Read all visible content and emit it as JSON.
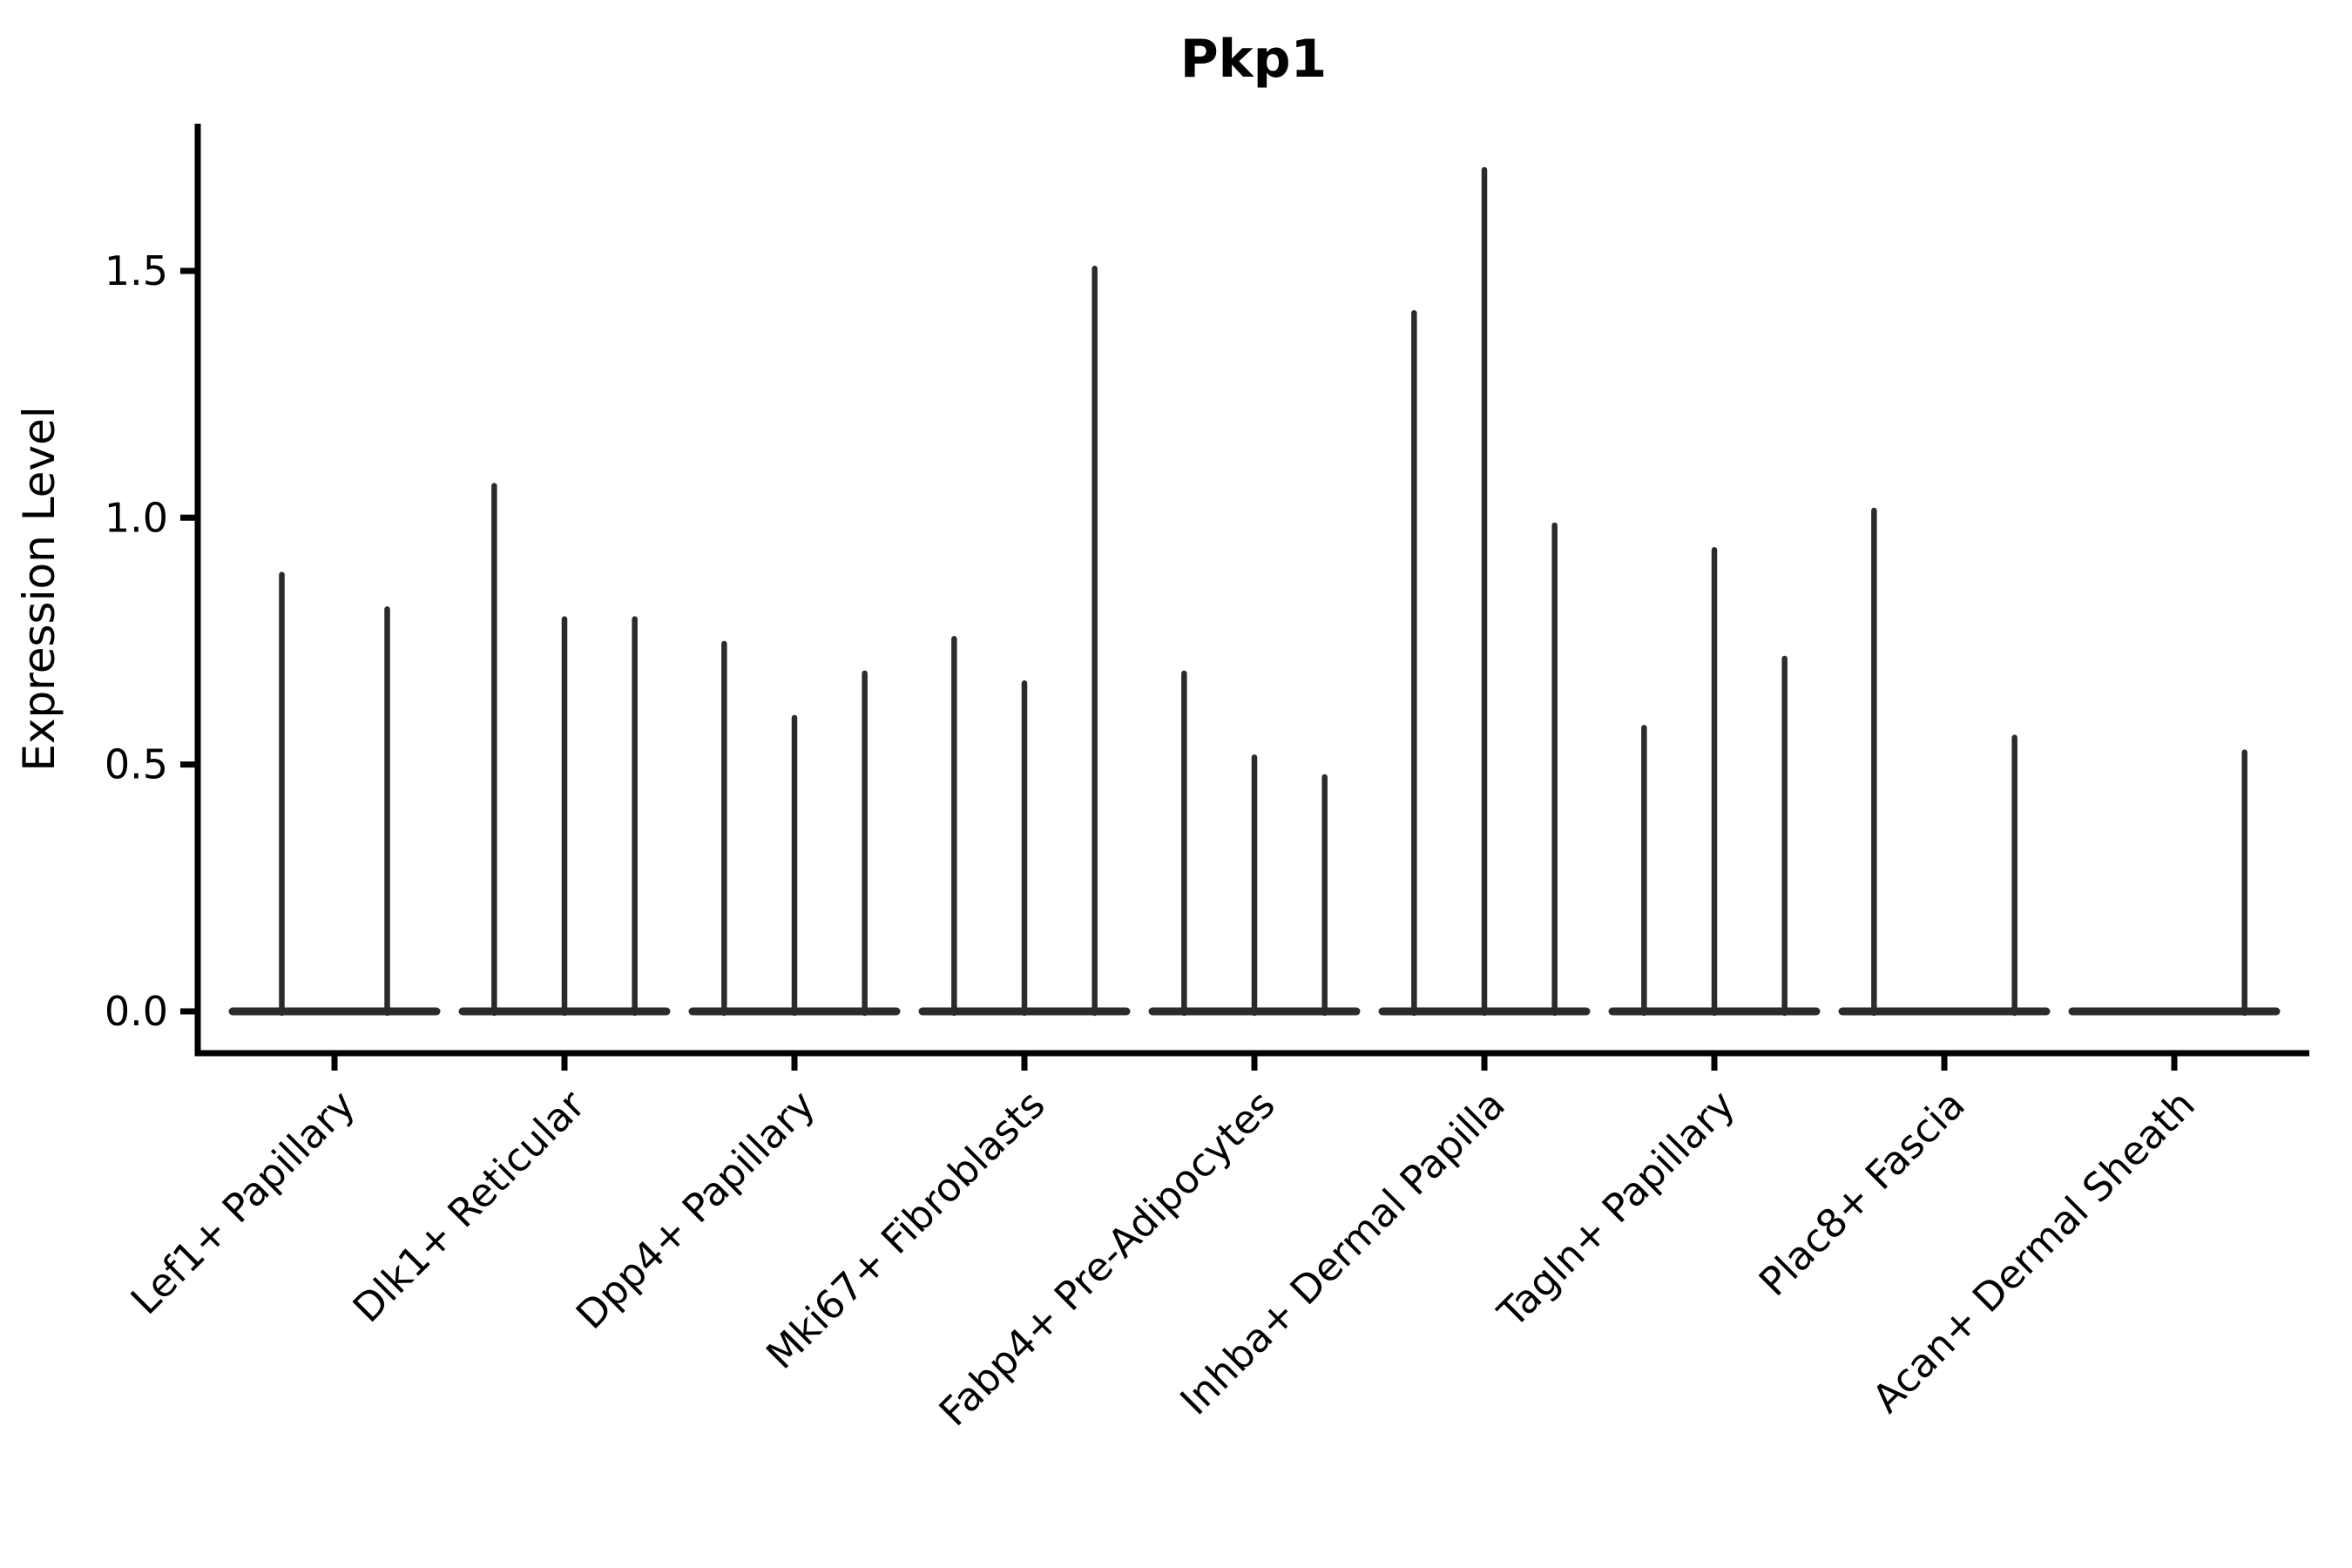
{
  "figure": {
    "title": "Pkp1",
    "ylabel": "Expression Level"
  },
  "chart_data": {
    "type": "violin",
    "title": "Pkp1",
    "xlabel": "",
    "ylabel": "Expression Level",
    "legend": "none",
    "grid": false,
    "background": "#ffffff",
    "axis_color": "#000000",
    "violin_color": "#2b2b2b",
    "ytick_labels": [
      "0.0",
      "0.5",
      "1.0",
      "1.5"
    ],
    "ytick_values": [
      0.0,
      0.5,
      1.0,
      1.5
    ],
    "ylim": [
      -0.085,
      1.8
    ],
    "note": "Collapsed single-cell violin plot (Seurat VlnPlot style): each category shows 2-3 razor-thin violins (flat base at 0 with a thin spike to the max expression value). 'max' = spike top in Expression Level units; 'slot' = horizontal position fraction within the category band; max 0 = flat violin with no spike.",
    "categories": [
      "Lef1+ Papillary",
      "Dlk1+ Reticular",
      "Dpp4+ Papillary",
      "Mki67+ Fibroblasts",
      "Fabp4+ Pre-Adipocytes",
      "Inhba+ Dermal Papilla",
      "Tagln+ Papillary",
      "Plac8+ Fascia",
      "Acan+ Dermal Sheath"
    ],
    "groups": [
      {
        "category": "Lef1+ Papillary",
        "violins": [
          {
            "slot": 0.25,
            "max": 0.89
          },
          {
            "slot": 0.75,
            "max": 0.82
          }
        ]
      },
      {
        "category": "Dlk1+ Reticular",
        "violins": [
          {
            "slot": 0.1667,
            "max": 1.07
          },
          {
            "slot": 0.5,
            "max": 0.8
          },
          {
            "slot": 0.8333,
            "max": 0.8
          }
        ]
      },
      {
        "category": "Dpp4+ Papillary",
        "violins": [
          {
            "slot": 0.1667,
            "max": 0.75
          },
          {
            "slot": 0.5,
            "max": 0.6
          },
          {
            "slot": 0.8333,
            "max": 0.69
          }
        ]
      },
      {
        "category": "Mki67+ Fibroblasts",
        "violins": [
          {
            "slot": 0.1667,
            "max": 0.76
          },
          {
            "slot": 0.5,
            "max": 0.67
          },
          {
            "slot": 0.8333,
            "max": 1.51
          }
        ]
      },
      {
        "category": "Fabp4+ Pre-Adipocytes",
        "violins": [
          {
            "slot": 0.1667,
            "max": 0.69
          },
          {
            "slot": 0.5,
            "max": 0.52
          },
          {
            "slot": 0.8333,
            "max": 0.48
          }
        ]
      },
      {
        "category": "Inhba+ Dermal Papilla",
        "violins": [
          {
            "slot": 0.1667,
            "max": 1.42
          },
          {
            "slot": 0.5,
            "max": 1.71
          },
          {
            "slot": 0.8333,
            "max": 0.99
          }
        ]
      },
      {
        "category": "Tagln+ Papillary",
        "violins": [
          {
            "slot": 0.1667,
            "max": 0.58
          },
          {
            "slot": 0.5,
            "max": 0.94
          },
          {
            "slot": 0.8333,
            "max": 0.72
          }
        ]
      },
      {
        "category": "Plac8+ Fascia",
        "violins": [
          {
            "slot": 0.1667,
            "max": 1.02
          },
          {
            "slot": 0.5,
            "max": 0.0
          },
          {
            "slot": 0.8333,
            "max": 0.56
          }
        ]
      },
      {
        "category": "Acan+ Dermal Sheath",
        "violins": [
          {
            "slot": 0.1667,
            "max": 0.0
          },
          {
            "slot": 0.5,
            "max": 0.0
          },
          {
            "slot": 0.8333,
            "max": 0.53
          }
        ]
      }
    ]
  }
}
